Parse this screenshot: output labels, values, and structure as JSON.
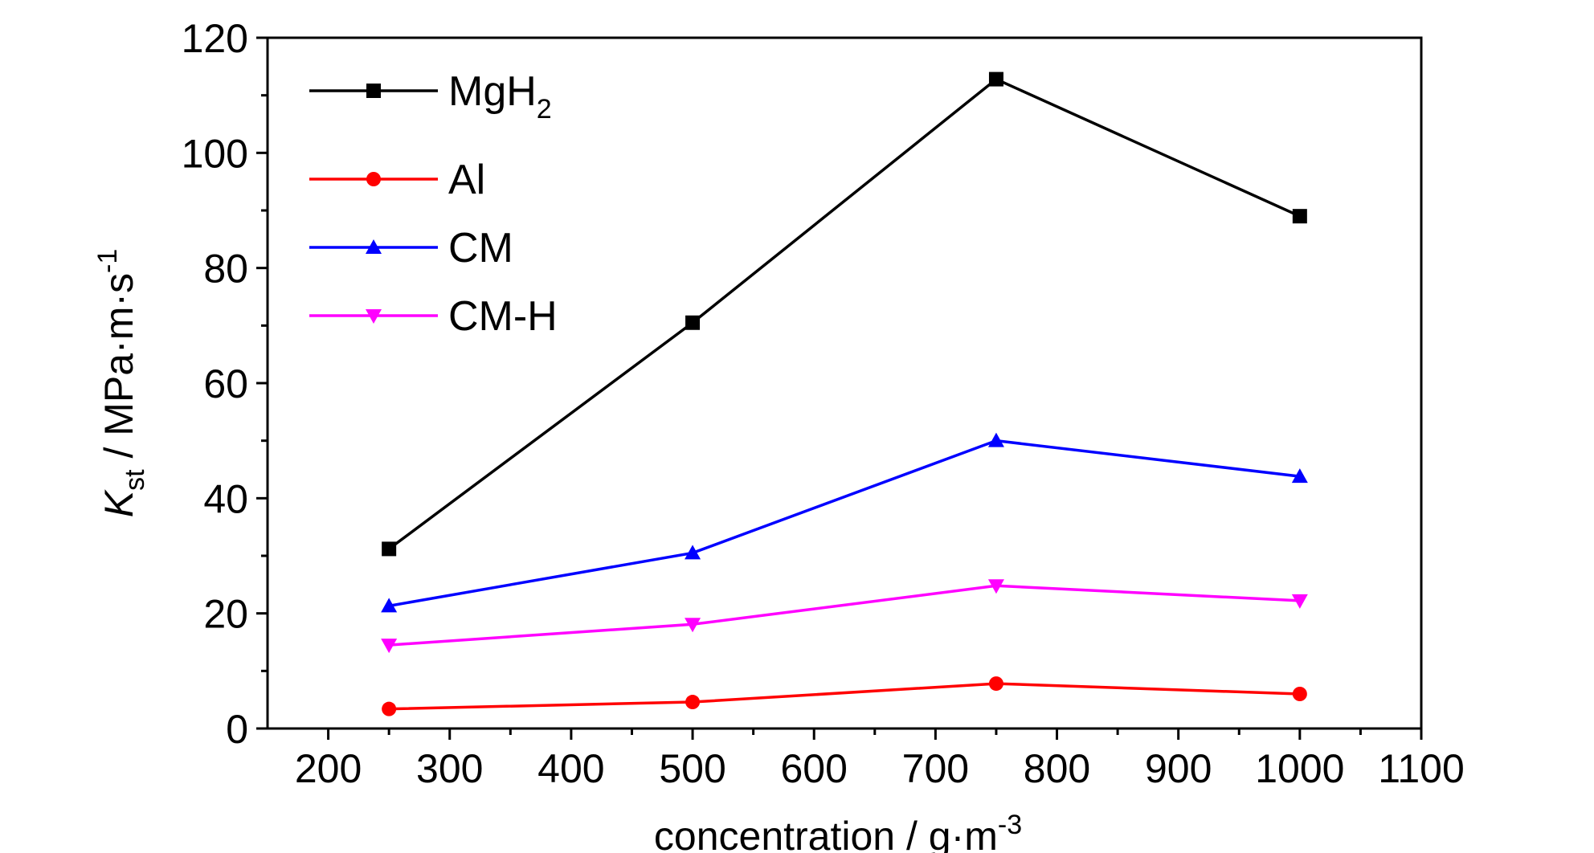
{
  "chart_data": {
    "type": "line",
    "title": "",
    "xlabel": "concentration / g·m",
    "xlabel_superscript": "-3",
    "ylabel": {
      "symbol": "K",
      "subscript": "st",
      "unit": " / MPa·m·s",
      "superscript": "-1"
    },
    "xlim": [
      150,
      1100
    ],
    "ylim": [
      0,
      120
    ],
    "x_ticks": [
      200,
      300,
      400,
      500,
      600,
      700,
      800,
      900,
      1000,
      1100
    ],
    "y_ticks": [
      0,
      20,
      40,
      60,
      80,
      100,
      120
    ],
    "grid": false,
    "legend_position": "top-left",
    "x": [
      250,
      500,
      750,
      1000
    ],
    "series": [
      {
        "name": "MgH",
        "name_subscript": "2",
        "color": "#000000",
        "marker": "square",
        "values": [
          31.2,
          70.5,
          112.8,
          89.0
        ]
      },
      {
        "name": "Al",
        "color": "#ff0000",
        "marker": "circle",
        "values": [
          3.4,
          4.6,
          7.8,
          6.0
        ]
      },
      {
        "name": "CM",
        "color": "#0000ff",
        "marker": "triangle-up",
        "values": [
          21.3,
          30.5,
          50.0,
          43.8
        ]
      },
      {
        "name": "CM-H",
        "color": "#ff00ff",
        "marker": "triangle-down",
        "values": [
          14.5,
          18.1,
          24.8,
          22.2
        ]
      }
    ]
  }
}
